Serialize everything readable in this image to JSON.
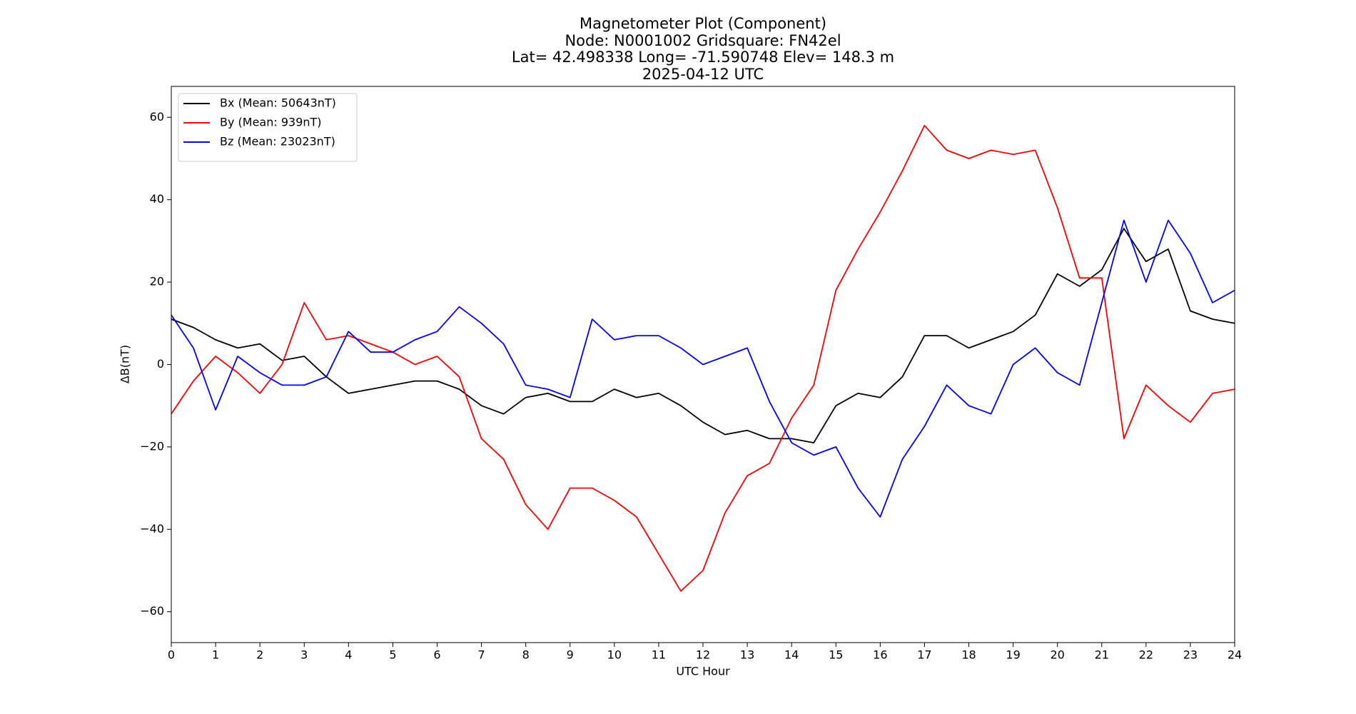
{
  "chart_data": {
    "type": "line",
    "title_lines": [
      "Magnetometer Plot (Component)",
      "Node:  N0001002     Gridsquare:  FN42el",
      "Lat= 42.498338    Long= -71.590748    Elev= 148.3 m",
      "2025-04-12  UTC"
    ],
    "x_label": "UTC Hour",
    "y_label": "ΔB(nT)",
    "xlim": [
      0,
      24
    ],
    "xticks": [
      0,
      1,
      2,
      3,
      4,
      5,
      6,
      7,
      8,
      9,
      10,
      11,
      12,
      13,
      14,
      15,
      16,
      17,
      18,
      19,
      20,
      21,
      22,
      23,
      24
    ],
    "ylim": [
      -67.5,
      67.5
    ],
    "yticks": [
      {
        "value": -60,
        "label": "−60"
      },
      {
        "value": -40,
        "label": "−40"
      },
      {
        "value": -20,
        "label": "−20"
      },
      0,
      20,
      40,
      60
    ],
    "legend": "upper left",
    "x": [
      0,
      0.5,
      1,
      1.5,
      2,
      2.5,
      3,
      3.5,
      4,
      4.5,
      5,
      5.5,
      6,
      6.5,
      7,
      7.5,
      8,
      8.5,
      9,
      9.5,
      10,
      10.5,
      11,
      11.5,
      12,
      12.5,
      13,
      13.5,
      14,
      14.5,
      15,
      15.5,
      16,
      16.5,
      17,
      17.5,
      18,
      18.5,
      19,
      19.5,
      20,
      20.5,
      21,
      21.5,
      22,
      22.5,
      23,
      23.5,
      24
    ],
    "series": [
      {
        "name": "Bx (Mean: 50643nT)",
        "color": "#000000",
        "values": [
          11,
          9,
          6,
          4,
          5,
          1,
          2,
          -3,
          -7,
          -6,
          -5,
          -4,
          -4,
          -6,
          -10,
          -12,
          -8,
          -7,
          -9,
          -9,
          -6,
          -8,
          -7,
          -10,
          -14,
          -17,
          -16,
          -18,
          -18,
          -19,
          -10,
          -7,
          -8,
          -3,
          7,
          7,
          4,
          6,
          8,
          12,
          22,
          19,
          23,
          33,
          25,
          28,
          13,
          11,
          10
        ]
      },
      {
        "name": "By (Mean: 939nT)",
        "color": "#ff0000",
        "values": [
          -12,
          -4,
          2,
          -2,
          -7,
          0,
          15,
          6,
          7,
          5,
          3,
          0,
          2,
          -3,
          -18,
          -23,
          -34,
          -40,
          -30,
          -30,
          -33,
          -37,
          -46,
          -55,
          -50,
          -36,
          -27,
          -24,
          -13,
          -5,
          18,
          28,
          37,
          47,
          58,
          52,
          50,
          52,
          51,
          52,
          38,
          21,
          21,
          -18,
          -5,
          -10,
          -14,
          -7,
          -6
        ]
      },
      {
        "name": "Bz (Mean: 23023nT)",
        "color": "#0000ff",
        "values": [
          12,
          4,
          -11,
          2,
          -2,
          -5,
          -5,
          -3,
          8,
          3,
          3,
          6,
          8,
          14,
          10,
          5,
          -5,
          -6,
          -8,
          11,
          6,
          7,
          7,
          4,
          0,
          2,
          4,
          -9,
          -19,
          -22,
          -20,
          -30,
          -37,
          -23,
          -15,
          -5,
          -10,
          -12,
          0,
          4,
          -2,
          -5,
          15,
          35,
          20,
          35,
          27,
          15,
          18
        ]
      }
    ]
  }
}
